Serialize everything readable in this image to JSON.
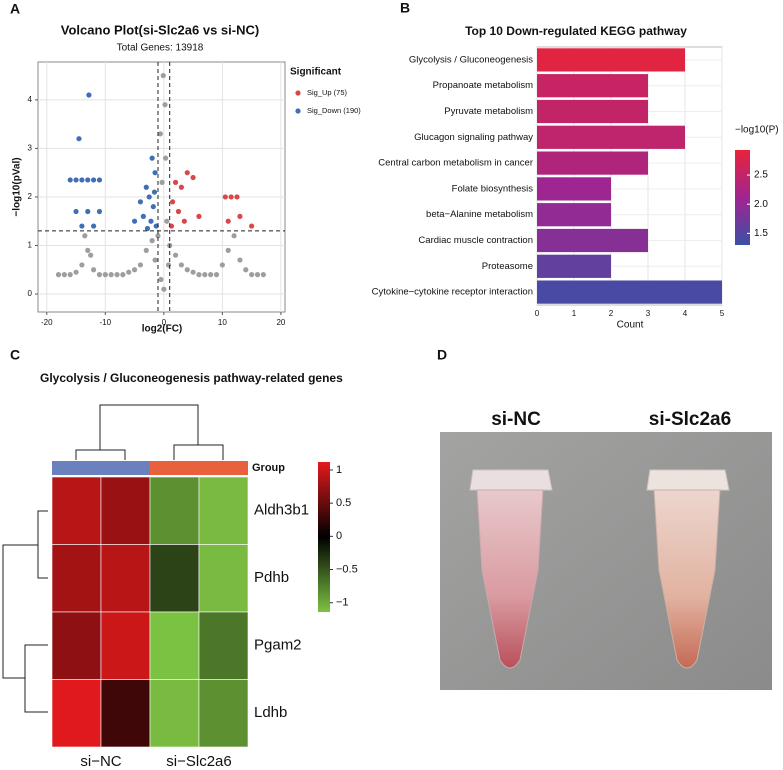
{
  "panel_labels": [
    "A",
    "B",
    "C",
    "D"
  ],
  "photo": {
    "labels": [
      "si-NC",
      "si-Slc2a6"
    ]
  },
  "chart_data": [
    {
      "type": "scatter",
      "title": "Volcano Plot(si-Slc2a6 vs si-NC)",
      "subtitle": "Total Genes: 13918",
      "x_label": "log2(FC)",
      "y_label": "−log10(pVal)",
      "legend_title": "Significant",
      "xlim": [
        -21.5,
        20.7
      ],
      "ylim": [
        -0.37,
        4.78
      ],
      "xticks": [
        -20,
        -10,
        0,
        10,
        20
      ],
      "yticks": [
        0,
        1,
        2,
        3,
        4
      ],
      "grid": true,
      "thresholds": {
        "x": [
          -1,
          1
        ],
        "y": 1.3
      },
      "series": [
        {
          "color": "#9e9e9e",
          "x": [
            -18,
            -17,
            -16,
            -15,
            -14,
            -13,
            -12,
            -11,
            -10,
            -9,
            -8,
            -7,
            -6,
            -5,
            -4,
            -3,
            -2,
            -1.5,
            -1,
            -0.5,
            0,
            0.5,
            -0.3,
            0.2,
            -0.1,
            0.8,
            1,
            2,
            3,
            4,
            5,
            6,
            7,
            8,
            9,
            10,
            11,
            12,
            13,
            14,
            15,
            16,
            17,
            -13.5,
            -12.5,
            0.3,
            -0.6
          ],
          "values": [
            0.4,
            0.4,
            0.4,
            0.45,
            0.6,
            0.9,
            0.5,
            0.4,
            0.4,
            0.4,
            0.4,
            0.4,
            0.45,
            0.5,
            0.6,
            0.9,
            1.1,
            0.7,
            1.2,
            0.3,
            0.1,
            1.5,
            2.3,
            3.9,
            4.5,
            0.6,
            1,
            0.8,
            0.6,
            0.5,
            0.45,
            0.4,
            0.4,
            0.4,
            0.4,
            0.6,
            0.9,
            1.2,
            0.7,
            0.5,
            0.4,
            0.4,
            0.4,
            1.2,
            0.8,
            2.8,
            3.3
          ]
        },
        {
          "name": "Sig_Up (75)",
          "color": "#d9474b",
          "x": [
            2,
            3,
            4,
            5,
            1.5,
            2.5,
            3.5,
            1.3,
            6,
            10.5,
            11.5,
            12.5,
            11,
            15,
            13
          ],
          "values": [
            2.3,
            2.2,
            2.5,
            2.4,
            1.9,
            1.7,
            1.5,
            1.4,
            1.6,
            2,
            2,
            2,
            1.5,
            1.4,
            1.6
          ]
        },
        {
          "name": "Sig_Down (190)",
          "color": "#3f6fb5",
          "x": [
            -12.8,
            -14.5,
            -15,
            -14,
            -13,
            -12,
            -11,
            -16,
            -15,
            -13,
            -11,
            -12,
            -14,
            -2,
            -1.5,
            -3,
            -2.5,
            -4,
            -1.8,
            -3.5,
            -2.2,
            -1.3,
            -5,
            -2.8,
            -1.6
          ],
          "values": [
            4.1,
            3.2,
            2.35,
            2.35,
            2.35,
            2.35,
            2.35,
            2.35,
            1.7,
            1.7,
            1.7,
            1.4,
            1.4,
            2.8,
            2.5,
            2.2,
            2,
            1.9,
            1.8,
            1.6,
            1.5,
            1.4,
            1.5,
            1.35,
            2.1
          ]
        }
      ]
    },
    {
      "type": "bar",
      "orientation": "horizontal",
      "title": "Top 10 Down-regulated KEGG pathway",
      "x_label": "Count",
      "colorbar_title": "−log10(P)",
      "categories": [
        "Glycolysis / Gluconeogenesis",
        "Propanoate metabolism",
        "Pyruvate metabolism",
        "Glucagon signaling pathway",
        "Central carbon metabolism in cancer",
        "Folate biosynthesis",
        "beta−Alanine metabolism",
        "Cardiac muscle contraction",
        "Proteasome",
        "Cytokine−cytokine receptor interaction"
      ],
      "values": [
        4,
        3,
        3,
        4,
        3,
        2,
        2,
        3,
        2,
        5
      ],
      "color_values": [
        2.85,
        2.55,
        2.5,
        2.45,
        2.3,
        2.1,
        2,
        1.9,
        1.6,
        1.4
      ],
      "xlim": [
        0,
        5
      ],
      "xticks": [
        0,
        1,
        2,
        3,
        4,
        5
      ],
      "grid": true,
      "clim": [
        1.3,
        2.93
      ],
      "cticks": [
        1.5,
        {
          "value": 2,
          "label": "2.0"
        },
        2.5
      ],
      "color_scale": [
        "#3c4fa6",
        "#a02590",
        "#e8243a"
      ]
    },
    {
      "type": "heatmap",
      "title": "Glycolysis / Gluconeogenesis pathway-related genes",
      "legend_title": "Group",
      "rows": [
        "Aldh3b1",
        "Pdhb",
        "Pgam2",
        "Ldhb"
      ],
      "group_labels": [
        "si−NC",
        "si−Slc2a6"
      ],
      "group_colors": [
        "#6b80be",
        "#e8603c"
      ],
      "values": [
        [
          0.9,
          0.75,
          -0.85,
          -1.1
        ],
        [
          0.8,
          0.9,
          -0.4,
          -1.1
        ],
        [
          0.7,
          1,
          -1.2,
          -0.7
        ],
        [
          1.1,
          0.3,
          -1.1,
          -0.85
        ]
      ],
      "clim": [
        -1.14,
        1.12
      ],
      "cticks": [
        1,
        0.5,
        0,
        {
          "value": -0.5,
          "label": "−0.5"
        },
        {
          "value": -1,
          "label": "−1"
        }
      ],
      "color_scale": [
        "#7cc242",
        "#000000",
        "#e41a1c"
      ]
    }
  ]
}
